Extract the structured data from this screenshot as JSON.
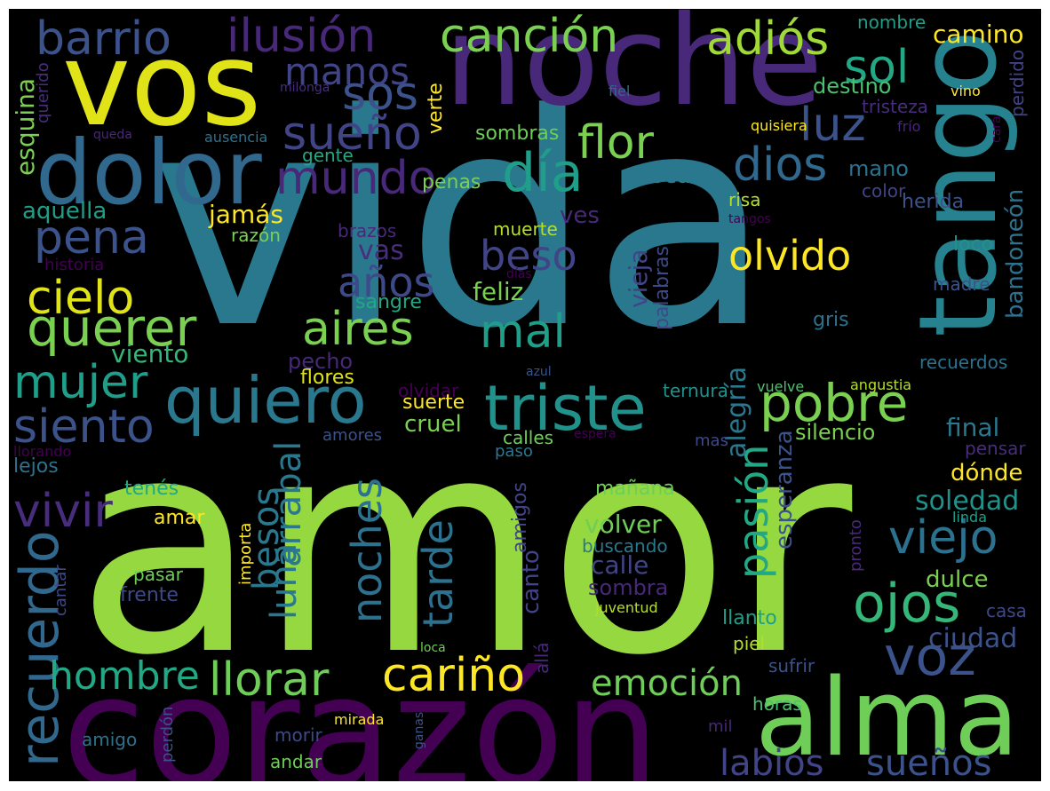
{
  "palette": {
    "c1": "#fde725",
    "c2": "#b5de2b",
    "c3": "#6ece58",
    "c4": "#35b779",
    "c5": "#1f9e89",
    "c6": "#26828e",
    "c7": "#31688e",
    "c8": "#3e4989",
    "c9": "#482878",
    "c10": "#440154"
  },
  "words": [
    {
      "text": "vida",
      "color": "#2a788e"
    },
    {
      "text": "amor",
      "color": "#95d840"
    },
    {
      "text": "corazón",
      "color": "#440154"
    },
    {
      "text": "noche",
      "color": "#482878"
    },
    {
      "text": "tango",
      "color": "#26828e"
    },
    {
      "text": "alma",
      "color": "#6ece58"
    },
    {
      "text": "vos",
      "color": "#dfe318"
    },
    {
      "text": "dolor",
      "color": "#31688e"
    },
    {
      "text": "quiero",
      "color": "#2a788e"
    },
    {
      "text": "triste",
      "color": "#21918c"
    },
    {
      "text": "recuerdo",
      "color": "#31688e"
    },
    {
      "text": "barrio",
      "color": "#3b528b"
    },
    {
      "text": "ilusión",
      "color": "#482878"
    },
    {
      "text": "canción",
      "color": "#7ad151"
    },
    {
      "text": "adiós",
      "color": "#a0da39"
    },
    {
      "text": "sol",
      "color": "#22a884"
    },
    {
      "text": "sos",
      "color": "#3b528b"
    },
    {
      "text": "manos",
      "color": "#414487"
    },
    {
      "text": "sueño",
      "color": "#414487"
    },
    {
      "text": "luz",
      "color": "#3b528b"
    },
    {
      "text": "flor",
      "color": "#7ad151"
    },
    {
      "text": "día",
      "color": "#1f9e89"
    },
    {
      "text": "mundo",
      "color": "#482878"
    },
    {
      "text": "dios",
      "color": "#31688e"
    },
    {
      "text": "pena",
      "color": "#3b528b"
    },
    {
      "text": "cielo",
      "color": "#dfe318"
    },
    {
      "text": "querer",
      "color": "#7ad151"
    },
    {
      "text": "aires",
      "color": "#7ad151"
    },
    {
      "text": "mal",
      "color": "#1f9e89"
    },
    {
      "text": "mujer",
      "color": "#1f9e89"
    },
    {
      "text": "siento",
      "color": "#3b528b"
    },
    {
      "text": "vivir",
      "color": "#472d7b"
    },
    {
      "text": "olvido",
      "color": "#fde725"
    },
    {
      "text": "beso",
      "color": "#414487"
    },
    {
      "text": "años",
      "color": "#3e4989"
    },
    {
      "text": "pobre",
      "color": "#7ad151"
    },
    {
      "text": "viejo",
      "color": "#2c728e"
    },
    {
      "text": "ojos",
      "color": "#35b779"
    },
    {
      "text": "voz",
      "color": "#3b528b"
    },
    {
      "text": "pasión",
      "color": "#22a884"
    },
    {
      "text": "tarde",
      "color": "#2c728e"
    },
    {
      "text": "noches",
      "color": "#2c728e"
    },
    {
      "text": "luna",
      "color": "#2a788e"
    },
    {
      "text": "arrabal",
      "color": "#2a788e"
    },
    {
      "text": "besos",
      "color": "#2a788e"
    },
    {
      "text": "hombre",
      "color": "#22a884"
    },
    {
      "text": "llorar",
      "color": "#6ece58"
    },
    {
      "text": "cariño",
      "color": "#fde725"
    },
    {
      "text": "emoción",
      "color": "#6ece58"
    },
    {
      "text": "labios",
      "color": "#414487"
    },
    {
      "text": "sueños",
      "color": "#3b528b"
    },
    {
      "text": "ciudad",
      "color": "#3b528b"
    },
    {
      "text": "soledad",
      "color": "#21918c"
    },
    {
      "text": "esperanza",
      "color": "#3b528b"
    },
    {
      "text": "alegría",
      "color": "#2a788e"
    },
    {
      "text": "bandoneón",
      "color": "#2c728e"
    },
    {
      "text": "vieja",
      "color": "#414487"
    },
    {
      "text": "palabras",
      "color": "#3e4989"
    },
    {
      "text": "esquina",
      "color": "#7ad151"
    },
    {
      "text": "querido",
      "color": "#472d7b"
    },
    {
      "text": "verte",
      "color": "#fde725"
    },
    {
      "text": "destino",
      "color": "#4ac16d"
    },
    {
      "text": "tristeza",
      "color": "#472d7b"
    },
    {
      "text": "camino",
      "color": "#fde725"
    },
    {
      "text": "nombre",
      "color": "#1f9e89"
    },
    {
      "text": "perdido",
      "color": "#414487"
    },
    {
      "text": "milonga",
      "color": "#472d7b"
    },
    {
      "text": "fiel",
      "color": "#31688e"
    },
    {
      "text": "vino",
      "color": "#fde725"
    },
    {
      "text": "queda",
      "color": "#482878"
    },
    {
      "text": "ausencia",
      "color": "#2c728e"
    },
    {
      "text": "sombras",
      "color": "#6ece58"
    },
    {
      "text": "quisiera",
      "color": "#fde725"
    },
    {
      "text": "frío",
      "color": "#482878"
    },
    {
      "text": "cara",
      "color": "#440154"
    },
    {
      "text": "gente",
      "color": "#22a884"
    },
    {
      "text": "penas",
      "color": "#7ad151"
    },
    {
      "text": "boca",
      "color": "#2a788e"
    },
    {
      "text": "mano",
      "color": "#2c728e"
    },
    {
      "text": "color",
      "color": "#414487"
    },
    {
      "text": "aquella",
      "color": "#1f9e89"
    },
    {
      "text": "jamás",
      "color": "#fde725"
    },
    {
      "text": "ves",
      "color": "#482878"
    },
    {
      "text": "risa",
      "color": "#b5de2b"
    },
    {
      "text": "herida",
      "color": "#3b528b"
    },
    {
      "text": "tangos",
      "color": "#440154"
    },
    {
      "text": "razón",
      "color": "#7ad151"
    },
    {
      "text": "brazos",
      "color": "#482878"
    },
    {
      "text": "muerte",
      "color": "#b5de2b"
    },
    {
      "text": "vas",
      "color": "#472d7b"
    },
    {
      "text": "historia",
      "color": "#440154"
    },
    {
      "text": "días",
      "color": "#440154"
    },
    {
      "text": "loco",
      "color": "#21918c"
    },
    {
      "text": "madre",
      "color": "#3b528b"
    },
    {
      "text": "feliz",
      "color": "#7ad151"
    },
    {
      "text": "sangre",
      "color": "#22a884"
    },
    {
      "text": "gris",
      "color": "#2c728e"
    },
    {
      "text": "viento",
      "color": "#35b779"
    },
    {
      "text": "pecho",
      "color": "#482878"
    },
    {
      "text": "recuerdos",
      "color": "#2c728e"
    },
    {
      "text": "flores",
      "color": "#dfe318"
    },
    {
      "text": "azul",
      "color": "#3b528b"
    },
    {
      "text": "ternura",
      "color": "#21918c"
    },
    {
      "text": "vuelve",
      "color": "#4ac16d"
    },
    {
      "text": "angustia",
      "color": "#b5de2b"
    },
    {
      "text": "olvidar",
      "color": "#440154"
    },
    {
      "text": "suerte",
      "color": "#fde725"
    },
    {
      "text": "cruel",
      "color": "#7ad151"
    },
    {
      "text": "espera",
      "color": "#440154"
    },
    {
      "text": "calles",
      "color": "#6ece58"
    },
    {
      "text": "amores",
      "color": "#3b528b"
    },
    {
      "text": "silencio",
      "color": "#7ad151"
    },
    {
      "text": "final",
      "color": "#2a788e"
    },
    {
      "text": "mas",
      "color": "#3e4989"
    },
    {
      "text": "pensar",
      "color": "#472d7b"
    },
    {
      "text": "llorando",
      "color": "#440154"
    },
    {
      "text": "lejos",
      "color": "#2c728e"
    },
    {
      "text": "paso",
      "color": "#2a788e"
    },
    {
      "text": "dónde",
      "color": "#fde725"
    },
    {
      "text": "amigos",
      "color": "#414487"
    },
    {
      "text": "tenés",
      "color": "#22a884"
    },
    {
      "text": "mañana",
      "color": "#6ece58"
    },
    {
      "text": "amar",
      "color": "#fde725"
    },
    {
      "text": "volver",
      "color": "#6ece58"
    },
    {
      "text": "canto",
      "color": "#414487"
    },
    {
      "text": "buscando",
      "color": "#2a788e"
    },
    {
      "text": "linda",
      "color": "#1f9e89"
    },
    {
      "text": "pronto",
      "color": "#482878"
    },
    {
      "text": "calle",
      "color": "#414487"
    },
    {
      "text": "dulce",
      "color": "#7ad151"
    },
    {
      "text": "cantar",
      "color": "#3e4989"
    },
    {
      "text": "pasar",
      "color": "#6ece58"
    },
    {
      "text": "frente",
      "color": "#3e4989"
    },
    {
      "text": "importa",
      "color": "#fde725"
    },
    {
      "text": "sombra",
      "color": "#482878"
    },
    {
      "text": "juventud",
      "color": "#b5de2b"
    },
    {
      "text": "casa",
      "color": "#3e4989"
    },
    {
      "text": "llanto",
      "color": "#1f9e89"
    },
    {
      "text": "piel",
      "color": "#b5de2b"
    },
    {
      "text": "loca",
      "color": "#6ece58"
    },
    {
      "text": "allá",
      "color": "#482878"
    },
    {
      "text": "sufrir",
      "color": "#3b528b"
    },
    {
      "text": "horas",
      "color": "#4ac16d"
    },
    {
      "text": "mil",
      "color": "#482878"
    },
    {
      "text": "amigo",
      "color": "#2c728e"
    },
    {
      "text": "mirada",
      "color": "#fde725"
    },
    {
      "text": "ganas",
      "color": "#3b528b"
    },
    {
      "text": "morir",
      "color": "#3e4989"
    },
    {
      "text": "perdón",
      "color": "#3b528b"
    },
    {
      "text": "andar",
      "color": "#6ece58"
    }
  ]
}
